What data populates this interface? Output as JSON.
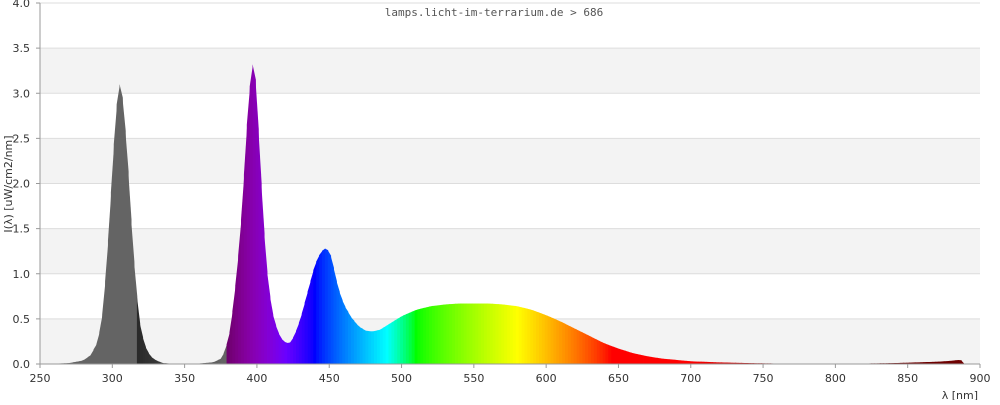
{
  "chart_data": {
    "type": "area",
    "watermark": "lamps.licht-im-terrarium.de > 686",
    "xlabel": "λ [nm]",
    "ylabel": "I(λ)  [uW/cm2/nm]",
    "xlim": [
      250,
      900
    ],
    "ylim": [
      0,
      4.0
    ],
    "x_ticks": [
      250,
      300,
      350,
      400,
      450,
      500,
      550,
      600,
      650,
      700,
      750,
      800,
      850,
      900
    ],
    "y_ticks": [
      "0.0",
      "0.5",
      "1.0",
      "1.5",
      "2.0",
      "2.5",
      "3.0",
      "3.5",
      "4.0"
    ],
    "grid": "horizontal bands",
    "series": [
      {
        "x": [
          255,
          270,
          280,
          285,
          290,
          293,
          296,
          299,
          302,
          304,
          305,
          307,
          310,
          313,
          316,
          319,
          322,
          326,
          330,
          335,
          340,
          350,
          360,
          370,
          375,
          378,
          381,
          384,
          387,
          390,
          392,
          394,
          396,
          397,
          398,
          399,
          400,
          402,
          404,
          406,
          408,
          411,
          414,
          417,
          420,
          423,
          426,
          430,
          435,
          440,
          444,
          447,
          450,
          452,
          454,
          457,
          460,
          465,
          470,
          475,
          480,
          485,
          490,
          495,
          500,
          510,
          520,
          530,
          540,
          550,
          560,
          570,
          580,
          590,
          600,
          610,
          620,
          630,
          640,
          650,
          660,
          670,
          680,
          690,
          700,
          720,
          740,
          760,
          780,
          800,
          820,
          840,
          850,
          860,
          870,
          880,
          885,
          888
        ],
        "y": [
          0.0,
          0.01,
          0.04,
          0.1,
          0.25,
          0.55,
          1.1,
          1.9,
          2.7,
          3.05,
          3.1,
          2.95,
          2.4,
          1.6,
          0.9,
          0.45,
          0.22,
          0.09,
          0.04,
          0.01,
          0.005,
          0.003,
          0.005,
          0.02,
          0.06,
          0.15,
          0.35,
          0.7,
          1.2,
          1.8,
          2.4,
          2.9,
          3.25,
          3.32,
          3.3,
          3.15,
          2.9,
          2.3,
          1.7,
          1.2,
          0.85,
          0.55,
          0.37,
          0.28,
          0.23,
          0.24,
          0.32,
          0.5,
          0.8,
          1.1,
          1.24,
          1.28,
          1.25,
          1.15,
          0.98,
          0.8,
          0.66,
          0.52,
          0.42,
          0.37,
          0.36,
          0.38,
          0.43,
          0.48,
          0.53,
          0.6,
          0.64,
          0.66,
          0.67,
          0.67,
          0.67,
          0.66,
          0.64,
          0.6,
          0.54,
          0.47,
          0.39,
          0.31,
          0.23,
          0.17,
          0.12,
          0.085,
          0.06,
          0.045,
          0.03,
          0.018,
          0.01,
          0.005,
          0.003,
          0.003,
          0.005,
          0.01,
          0.015,
          0.02,
          0.025,
          0.035,
          0.045,
          0.04
        ]
      }
    ]
  }
}
